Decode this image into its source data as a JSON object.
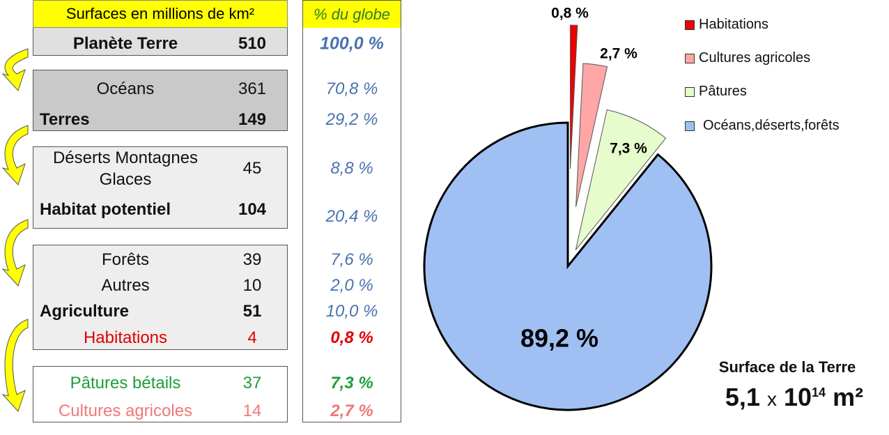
{
  "table": {
    "header_left": "Surfaces en millions de km²",
    "header_right": "% du globe",
    "rows": [
      {
        "label": "Planète Terre",
        "value": "510",
        "pct": "100,0 %"
      },
      {
        "label": "Océans",
        "value": "361",
        "pct": "70,8 %"
      },
      {
        "label": "Terres",
        "value": "149",
        "pct": "29,2 %"
      },
      {
        "label": "Déserts Montagnes",
        "label2": "Glaces",
        "value": "45",
        "pct": "8,8 %"
      },
      {
        "label": "Habitat potentiel",
        "value": "104",
        "pct": "20,4 %"
      },
      {
        "label": "Forêts",
        "value": "39",
        "pct": "7,6 %"
      },
      {
        "label": "Autres",
        "value": "10",
        "pct": "2,0 %"
      },
      {
        "label": "Agriculture",
        "value": "51",
        "pct": "10,0 %"
      },
      {
        "label": "Habitations",
        "value": "4",
        "pct": "0,8 %"
      },
      {
        "label": "Pâtures bétails",
        "value": "37",
        "pct": "7,3 %"
      },
      {
        "label": "Cultures agricoles",
        "value": "14",
        "pct": "2,7 %"
      }
    ]
  },
  "chart_data": {
    "type": "pie",
    "categories": [
      "Habitations",
      "Cultures agricoles",
      "Pâtures",
      "Océans,déserts,forêts"
    ],
    "values": [
      0.8,
      2.7,
      7.3,
      89.2
    ],
    "labels": [
      "0,8 %",
      "2,7 %",
      "7,3 %",
      "89,2 %"
    ],
    "colors": [
      "#ee0000",
      "#ffa6a6",
      "#e6fccc",
      "#a0c0f4"
    ],
    "legend_position": "top-right"
  },
  "caption": {
    "title": "Surface de la Terre",
    "mantissa": "5,1",
    "times": "x",
    "base": "10",
    "exponent": "14",
    "unit": "m²"
  }
}
